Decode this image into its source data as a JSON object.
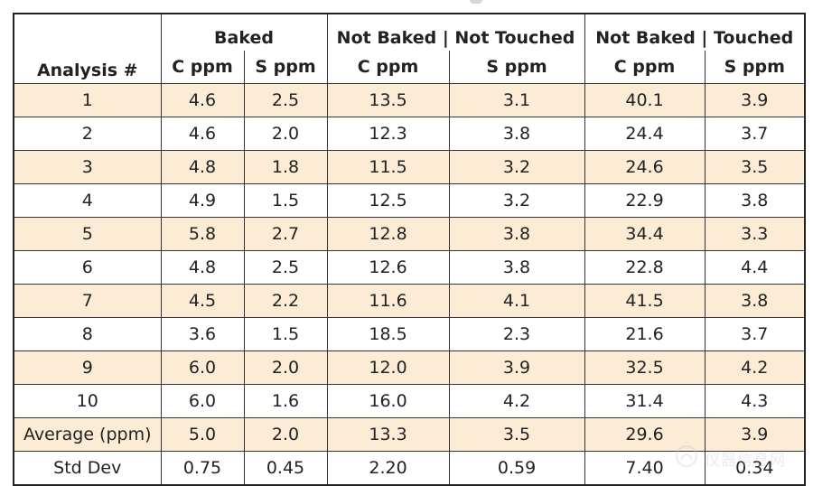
{
  "table": {
    "header_row1": {
      "analysis": "Analysis #",
      "group_baked": "Baked",
      "group_not_baked_not_touched": "Not Baked | Not Touched",
      "group_not_baked_touched": "Not Baked | Touched"
    },
    "header_row2": {
      "baked_c": "C ppm",
      "baked_s": "S ppm",
      "nbnt_c": "C ppm",
      "nbnt_s": "S ppm",
      "nbt_c": "C ppm",
      "nbt_s": "S ppm"
    },
    "rows": [
      [
        "1",
        "4.6",
        "2.5",
        "13.5",
        "3.1",
        "40.1",
        "3.9"
      ],
      [
        "2",
        "4.6",
        "2.0",
        "12.3",
        "3.8",
        "24.4",
        "3.7"
      ],
      [
        "3",
        "4.8",
        "1.8",
        "11.5",
        "3.2",
        "24.6",
        "3.5"
      ],
      [
        "4",
        "4.9",
        "1.5",
        "12.5",
        "3.2",
        "22.9",
        "3.8"
      ],
      [
        "5",
        "5.8",
        "2.7",
        "12.8",
        "3.8",
        "34.4",
        "3.3"
      ],
      [
        "6",
        "4.8",
        "2.5",
        "12.6",
        "3.8",
        "22.8",
        "4.4"
      ],
      [
        "7",
        "4.5",
        "2.2",
        "11.6",
        "4.1",
        "41.5",
        "3.8"
      ],
      [
        "8",
        "3.6",
        "1.5",
        "18.5",
        "2.3",
        "21.6",
        "3.7"
      ],
      [
        "9",
        "6.0",
        "2.0",
        "12.0",
        "3.9",
        "32.5",
        "4.2"
      ],
      [
        "10",
        "6.0",
        "1.6",
        "16.0",
        "4.2",
        "31.4",
        "4.3"
      ],
      [
        "Average (ppm)",
        "5.0",
        "2.0",
        "13.3",
        "3.5",
        "29.6",
        "3.9"
      ],
      [
        "Std Dev",
        "0.75",
        "0.45",
        "2.20",
        "0.59",
        "7.40",
        "0.34"
      ]
    ]
  },
  "colors": {
    "shaded_row": "#fcecd5",
    "plain_row": "#ffffff",
    "border": "#333333",
    "text": "#222222"
  },
  "watermark": {
    "icon": "watermark-logo-icon",
    "text": "仪器信息网"
  }
}
